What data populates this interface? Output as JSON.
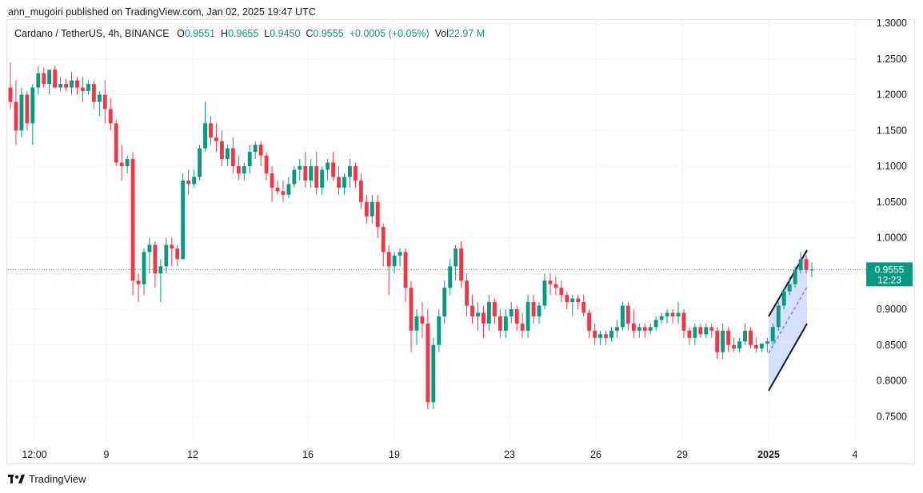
{
  "header": {
    "published_by": "ann_mugoiri published on TradingView.com, Jan 02, 2025 19:47 UTC"
  },
  "legend": {
    "symbol": "Cardano / TetherUS, 4h, BINANCE",
    "open_label": "O",
    "open": "0.9551",
    "high_label": "H",
    "high": "0.9655",
    "low_label": "L",
    "low": "0.9450",
    "close_label": "C",
    "close": "0.9555",
    "change": "+0.0005 (+0.05%)",
    "vol_label": "Vol",
    "vol": "22.97 M"
  },
  "price_tag": {
    "price": "0.9555",
    "countdown": "12:23",
    "color": "#089981"
  },
  "footer": {
    "brand": "TradingView",
    "logo_icon": "tradingview-logo-icon"
  },
  "colors": {
    "up": "#089981",
    "down": "#f23645",
    "grid": "#f0f3fa",
    "channel_fill": "#c9d6fb",
    "channel_line": "#131722"
  },
  "chart_data": {
    "type": "candlestick",
    "title": "Cardano / TetherUS, 4h, BINANCE",
    "y_ticks": [
      "1.3000",
      "1.2500",
      "1.2000",
      "1.1500",
      "1.1000",
      "1.0500",
      "1.0000",
      "0.9000",
      "0.8500",
      "0.8000",
      "0.7500"
    ],
    "x_ticks": [
      "12:00",
      "9",
      "12",
      "16",
      "19",
      "23",
      "26",
      "29",
      "2025",
      "4"
    ],
    "ylim": [
      0.715,
      1.305
    ],
    "grid": true,
    "last_price": 0.9555,
    "candles": [
      [
        1.21,
        1.245,
        1.18,
        1.19
      ],
      [
        1.19,
        1.22,
        1.13,
        1.15
      ],
      [
        1.15,
        1.21,
        1.14,
        1.2
      ],
      [
        1.2,
        1.205,
        1.15,
        1.16
      ],
      [
        1.16,
        1.215,
        1.13,
        1.21
      ],
      [
        1.21,
        1.24,
        1.2,
        1.23
      ],
      [
        1.23,
        1.238,
        1.21,
        1.215
      ],
      [
        1.215,
        1.235,
        1.2,
        1.235
      ],
      [
        1.235,
        1.24,
        1.21,
        1.21
      ],
      [
        1.21,
        1.225,
        1.205,
        1.215
      ],
      [
        1.215,
        1.222,
        1.205,
        1.21
      ],
      [
        1.21,
        1.232,
        1.2,
        1.22
      ],
      [
        1.22,
        1.225,
        1.2,
        1.21
      ],
      [
        1.21,
        1.225,
        1.19,
        1.205
      ],
      [
        1.205,
        1.22,
        1.2,
        1.215
      ],
      [
        1.215,
        1.22,
        1.18,
        1.19
      ],
      [
        1.19,
        1.205,
        1.17,
        1.2
      ],
      [
        1.2,
        1.22,
        1.16,
        1.18
      ],
      [
        1.18,
        1.195,
        1.15,
        1.16
      ],
      [
        1.16,
        1.165,
        1.1,
        1.105
      ],
      [
        1.105,
        1.13,
        1.08,
        1.1
      ],
      [
        1.1,
        1.115,
        1.09,
        1.11
      ],
      [
        1.11,
        1.12,
        0.92,
        0.94
      ],
      [
        0.94,
        0.95,
        0.91,
        0.935
      ],
      [
        0.935,
        0.985,
        0.92,
        0.98
      ],
      [
        0.98,
        1.0,
        0.95,
        0.99
      ],
      [
        0.99,
        0.995,
        0.93,
        0.95
      ],
      [
        0.95,
        0.97,
        0.91,
        0.96
      ],
      [
        0.96,
        1.0,
        0.95,
        0.99
      ],
      [
        0.99,
        1.0,
        0.96,
        0.985
      ],
      [
        0.985,
        0.99,
        0.96,
        0.97
      ],
      [
        0.97,
        1.09,
        0.97,
        1.08
      ],
      [
        1.08,
        1.095,
        1.06,
        1.075
      ],
      [
        1.075,
        1.095,
        1.07,
        1.085
      ],
      [
        1.085,
        1.13,
        1.08,
        1.125
      ],
      [
        1.125,
        1.19,
        1.12,
        1.16
      ],
      [
        1.16,
        1.17,
        1.13,
        1.14
      ],
      [
        1.14,
        1.16,
        1.12,
        1.135
      ],
      [
        1.135,
        1.15,
        1.1,
        1.11
      ],
      [
        1.11,
        1.13,
        1.1,
        1.125
      ],
      [
        1.125,
        1.14,
        1.09,
        1.1
      ],
      [
        1.1,
        1.115,
        1.08,
        1.09
      ],
      [
        1.09,
        1.105,
        1.08,
        1.1
      ],
      [
        1.1,
        1.13,
        1.09,
        1.12
      ],
      [
        1.12,
        1.135,
        1.11,
        1.13
      ],
      [
        1.13,
        1.135,
        1.1,
        1.115
      ],
      [
        1.115,
        1.12,
        1.08,
        1.09
      ],
      [
        1.09,
        1.1,
        1.05,
        1.07
      ],
      [
        1.07,
        1.08,
        1.06,
        1.065
      ],
      [
        1.065,
        1.08,
        1.05,
        1.06
      ],
      [
        1.06,
        1.085,
        1.055,
        1.075
      ],
      [
        1.075,
        1.1,
        1.07,
        1.095
      ],
      [
        1.095,
        1.11,
        1.08,
        1.1
      ],
      [
        1.1,
        1.12,
        1.07,
        1.08
      ],
      [
        1.08,
        1.11,
        1.07,
        1.1
      ],
      [
        1.1,
        1.12,
        1.06,
        1.07
      ],
      [
        1.07,
        1.1,
        1.06,
        1.095
      ],
      [
        1.095,
        1.11,
        1.08,
        1.105
      ],
      [
        1.105,
        1.12,
        1.08,
        1.085
      ],
      [
        1.085,
        1.1,
        1.06,
        1.07
      ],
      [
        1.07,
        1.09,
        1.06,
        1.085
      ],
      [
        1.085,
        1.11,
        1.07,
        1.1
      ],
      [
        1.1,
        1.105,
        1.07,
        1.08
      ],
      [
        1.08,
        1.09,
        1.04,
        1.05
      ],
      [
        1.05,
        1.06,
        1.02,
        1.03
      ],
      [
        1.03,
        1.06,
        1.02,
        1.05
      ],
      [
        1.05,
        1.06,
        1.0,
        1.015
      ],
      [
        1.015,
        1.02,
        0.96,
        0.98
      ],
      [
        0.98,
        0.99,
        0.92,
        0.96
      ],
      [
        0.96,
        0.98,
        0.95,
        0.975
      ],
      [
        0.975,
        0.985,
        0.96,
        0.98
      ],
      [
        0.98,
        0.985,
        0.91,
        0.93
      ],
      [
        0.93,
        0.94,
        0.84,
        0.87
      ],
      [
        0.87,
        0.9,
        0.85,
        0.89
      ],
      [
        0.89,
        0.91,
        0.86,
        0.88
      ],
      [
        0.88,
        0.9,
        0.76,
        0.77
      ],
      [
        0.77,
        0.86,
        0.76,
        0.85
      ],
      [
        0.85,
        0.9,
        0.84,
        0.89
      ],
      [
        0.89,
        0.94,
        0.88,
        0.93
      ],
      [
        0.93,
        0.97,
        0.92,
        0.96
      ],
      [
        0.96,
        0.99,
        0.94,
        0.985
      ],
      [
        0.985,
        0.995,
        0.93,
        0.94
      ],
      [
        0.94,
        0.95,
        0.89,
        0.905
      ],
      [
        0.905,
        0.92,
        0.88,
        0.89
      ],
      [
        0.89,
        0.91,
        0.87,
        0.895
      ],
      [
        0.895,
        0.905,
        0.86,
        0.88
      ],
      [
        0.88,
        0.92,
        0.87,
        0.91
      ],
      [
        0.91,
        0.915,
        0.88,
        0.89
      ],
      [
        0.89,
        0.9,
        0.86,
        0.87
      ],
      [
        0.87,
        0.9,
        0.86,
        0.89
      ],
      [
        0.89,
        0.91,
        0.88,
        0.9
      ],
      [
        0.9,
        0.905,
        0.87,
        0.88
      ],
      [
        0.88,
        0.895,
        0.86,
        0.87
      ],
      [
        0.87,
        0.92,
        0.86,
        0.91
      ],
      [
        0.91,
        0.92,
        0.88,
        0.89
      ],
      [
        0.89,
        0.91,
        0.88,
        0.905
      ],
      [
        0.905,
        0.95,
        0.9,
        0.94
      ],
      [
        0.94,
        0.95,
        0.92,
        0.935
      ],
      [
        0.935,
        0.945,
        0.92,
        0.93
      ],
      [
        0.93,
        0.94,
        0.91,
        0.92
      ],
      [
        0.92,
        0.925,
        0.9,
        0.91
      ],
      [
        0.91,
        0.92,
        0.89,
        0.915
      ],
      [
        0.915,
        0.92,
        0.9,
        0.91
      ],
      [
        0.91,
        0.92,
        0.89,
        0.895
      ],
      [
        0.895,
        0.9,
        0.86,
        0.87
      ],
      [
        0.87,
        0.88,
        0.85,
        0.86
      ],
      [
        0.86,
        0.87,
        0.85,
        0.865
      ],
      [
        0.865,
        0.87,
        0.85,
        0.86
      ],
      [
        0.86,
        0.875,
        0.855,
        0.87
      ],
      [
        0.87,
        0.885,
        0.86,
        0.875
      ],
      [
        0.875,
        0.91,
        0.87,
        0.905
      ],
      [
        0.905,
        0.91,
        0.87,
        0.88
      ],
      [
        0.88,
        0.9,
        0.86,
        0.87
      ],
      [
        0.87,
        0.88,
        0.86,
        0.875
      ],
      [
        0.875,
        0.88,
        0.86,
        0.87
      ],
      [
        0.87,
        0.88,
        0.865,
        0.875
      ],
      [
        0.875,
        0.89,
        0.87,
        0.885
      ],
      [
        0.885,
        0.895,
        0.88,
        0.89
      ],
      [
        0.89,
        0.9,
        0.88,
        0.895
      ],
      [
        0.895,
        0.9,
        0.88,
        0.89
      ],
      [
        0.89,
        0.91,
        0.88,
        0.895
      ],
      [
        0.895,
        0.9,
        0.86,
        0.87
      ],
      [
        0.87,
        0.875,
        0.85,
        0.86
      ],
      [
        0.86,
        0.88,
        0.85,
        0.875
      ],
      [
        0.875,
        0.88,
        0.86,
        0.865
      ],
      [
        0.865,
        0.88,
        0.86,
        0.875
      ],
      [
        0.875,
        0.88,
        0.86,
        0.87
      ],
      [
        0.87,
        0.875,
        0.83,
        0.84
      ],
      [
        0.84,
        0.88,
        0.83,
        0.87
      ],
      [
        0.87,
        0.875,
        0.84,
        0.85
      ],
      [
        0.85,
        0.86,
        0.84,
        0.845
      ],
      [
        0.845,
        0.86,
        0.84,
        0.855
      ],
      [
        0.855,
        0.88,
        0.85,
        0.87
      ],
      [
        0.87,
        0.875,
        0.845,
        0.85
      ],
      [
        0.85,
        0.86,
        0.84,
        0.845
      ],
      [
        0.845,
        0.85,
        0.84,
        0.852
      ],
      [
        0.852,
        0.86,
        0.84,
        0.855
      ],
      [
        0.855,
        0.88,
        0.85,
        0.875
      ],
      [
        0.875,
        0.91,
        0.87,
        0.905
      ],
      [
        0.905,
        0.93,
        0.9,
        0.925
      ],
      [
        0.925,
        0.945,
        0.92,
        0.935
      ],
      [
        0.935,
        0.96,
        0.93,
        0.955
      ],
      [
        0.955,
        0.98,
        0.95,
        0.97
      ],
      [
        0.97,
        0.975,
        0.95,
        0.955
      ],
      [
        0.9551,
        0.9655,
        0.945,
        0.9555
      ]
    ]
  }
}
